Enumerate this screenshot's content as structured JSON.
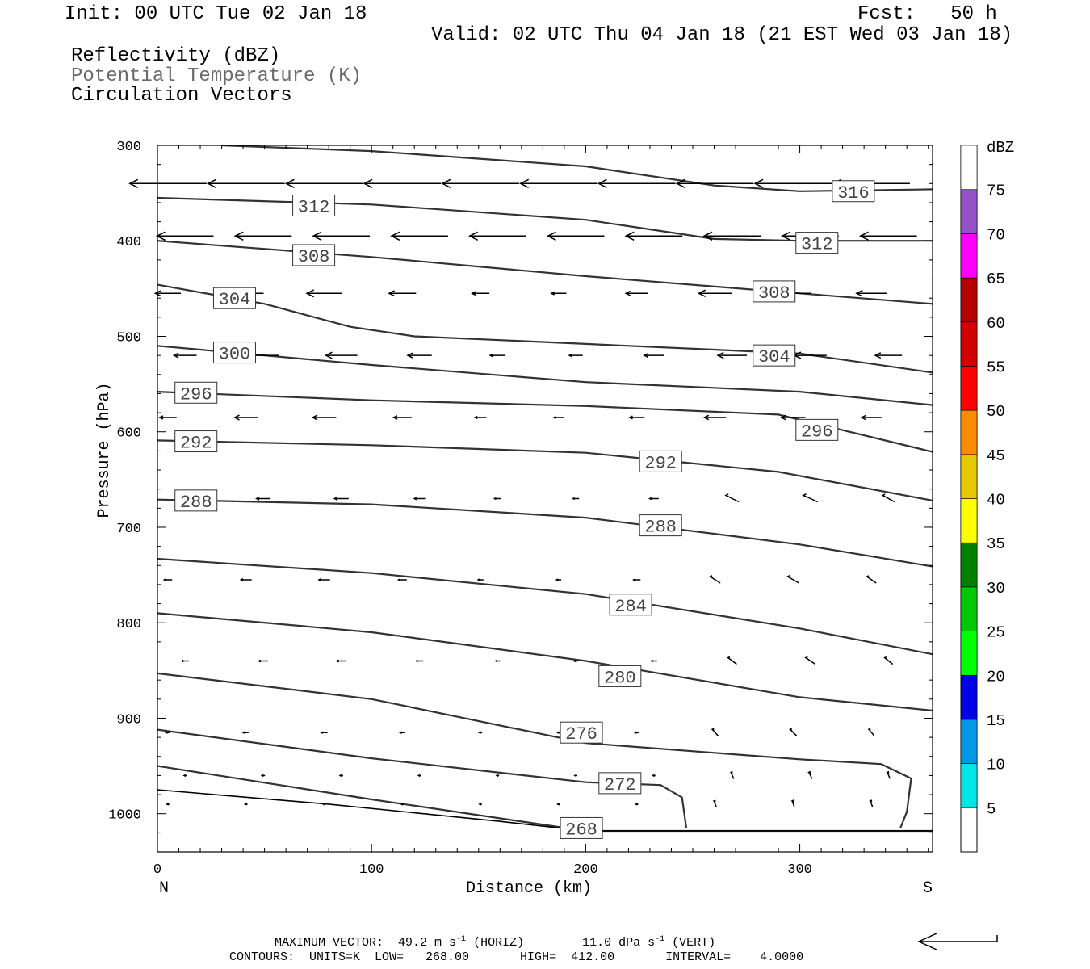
{
  "header": {
    "init": "Init: 00 UTC Tue 02 Jan 18",
    "fcst": "Fcst:   50 h",
    "valid": "Valid: 02 UTC Thu 04 Jan 18 (21 EST Wed 03 Jan 18)",
    "fields": [
      "Reflectivity (dBZ)",
      "Potential Temperature (K)",
      "Circulation Vectors"
    ]
  },
  "footer": {
    "line1": "MAXIMUM VECTOR:  49.2 m s",
    "line1_sup": "-1",
    "line1_mid": " (HORIZ)        11.0 dPa s",
    "line1_sup2": "-1",
    "line1_end": " (VERT)",
    "line2": "CONTOURS:  UNITS=K  LOW=   268.00       HIGH=  412.00       INTERVAL=    4.0000"
  },
  "chart_data": {
    "type": "line",
    "title": "",
    "xlabel": "Distance (km)",
    "ylabel": "Pressure (hPa)",
    "xlim": [
      0,
      362
    ],
    "ylim": [
      300,
      1040
    ],
    "y_inverted": true,
    "x_ticks": [
      0,
      100,
      200,
      300
    ],
    "y_ticks": [
      300,
      400,
      500,
      600,
      700,
      800,
      900,
      1000
    ],
    "x_end_labels": {
      "left": "N",
      "right": "S"
    },
    "colorbar": {
      "units": "dBZ",
      "labels": [
        "5",
        "10",
        "15",
        "20",
        "25",
        "30",
        "35",
        "40",
        "45",
        "50",
        "55",
        "60",
        "65",
        "70",
        "75"
      ],
      "colors": [
        "#00e6e6",
        "#0099e6",
        "#0000e6",
        "#00ff00",
        "#00c800",
        "#008200",
        "#ffff00",
        "#e6c800",
        "#ff8c00",
        "#ff0000",
        "#d20000",
        "#b40000",
        "#ff00ff",
        "#9650c8",
        "#ffffff"
      ]
    },
    "theta_contours": [
      {
        "label": "316",
        "points": [
          [
            30,
            300
          ],
          [
            100,
            306
          ],
          [
            200,
            322
          ],
          [
            260,
            342
          ],
          [
            300,
            348
          ],
          [
            362,
            346
          ]
        ],
        "label_at": [
          325,
          348
        ]
      },
      {
        "label": "312",
        "points": [
          [
            0,
            355
          ],
          [
            100,
            362
          ],
          [
            200,
            378
          ],
          [
            260,
            398
          ],
          [
            300,
            400
          ],
          [
            362,
            400
          ]
        ],
        "label_at": [
          73,
          363
        ],
        "label_at2": [
          308,
          402
        ]
      },
      {
        "label": "308",
        "points": [
          [
            0,
            400
          ],
          [
            100,
            417
          ],
          [
            200,
            437
          ],
          [
            300,
            455
          ],
          [
            362,
            466
          ]
        ],
        "label_at": [
          73,
          415
        ],
        "label_at2": [
          288,
          453
        ]
      },
      {
        "label": "304",
        "points": [
          [
            0,
            446
          ],
          [
            50,
            466
          ],
          [
            90,
            490
          ],
          [
            120,
            500
          ],
          [
            200,
            508
          ],
          [
            300,
            518
          ],
          [
            362,
            538
          ]
        ],
        "label_at": [
          36,
          460
        ],
        "label_at2": [
          288,
          520
        ]
      },
      {
        "label": "300",
        "points": [
          [
            0,
            510
          ],
          [
            100,
            530
          ],
          [
            200,
            548
          ],
          [
            300,
            558
          ],
          [
            362,
            572
          ]
        ],
        "label_at": [
          36,
          517
        ]
      },
      {
        "label": "296",
        "points": [
          [
            0,
            558
          ],
          [
            100,
            567
          ],
          [
            200,
            573
          ],
          [
            290,
            582
          ],
          [
            362,
            621
          ]
        ],
        "label_at": [
          18,
          559
        ],
        "label_at2": [
          308,
          598
        ]
      },
      {
        "label": "292",
        "points": [
          [
            0,
            609
          ],
          [
            100,
            614
          ],
          [
            200,
            622
          ],
          [
            290,
            642
          ],
          [
            362,
            672
          ]
        ],
        "label_at": [
          18,
          610
        ],
        "label_at2": [
          235,
          631
        ]
      },
      {
        "label": "288",
        "points": [
          [
            0,
            671
          ],
          [
            100,
            676
          ],
          [
            200,
            690
          ],
          [
            300,
            718
          ],
          [
            362,
            741
          ]
        ],
        "label_at": [
          18,
          672
        ],
        "label_at2": [
          235,
          698
        ]
      },
      {
        "label": "284",
        "points": [
          [
            0,
            733
          ],
          [
            100,
            748
          ],
          [
            200,
            770
          ],
          [
            300,
            806
          ],
          [
            362,
            833
          ]
        ],
        "label_at": [
          221,
          781
        ]
      },
      {
        "label": "280",
        "points": [
          [
            0,
            790
          ],
          [
            100,
            810
          ],
          [
            200,
            840
          ],
          [
            300,
            878
          ],
          [
            362,
            892
          ]
        ],
        "label_at": [
          216,
          856
        ]
      },
      {
        "label": "276",
        "points": [
          [
            0,
            853
          ],
          [
            100,
            880
          ],
          [
            200,
            926
          ],
          [
            300,
            943
          ],
          [
            338,
            948
          ],
          [
            352,
            963
          ],
          [
            350,
            998
          ],
          [
            347,
            1015
          ]
        ],
        "label_at": [
          198,
          915
        ]
      },
      {
        "label": "272",
        "points": [
          [
            0,
            912
          ],
          [
            100,
            942
          ],
          [
            200,
            967
          ],
          [
            235,
            970
          ],
          [
            245,
            983
          ],
          [
            247,
            1015
          ]
        ],
        "label_at": [
          216,
          968
        ]
      },
      {
        "label": "268",
        "points": [
          [
            0,
            950
          ],
          [
            100,
            985
          ],
          [
            200,
            1018
          ],
          [
            362,
            1018
          ]
        ],
        "label_at": [
          198,
          1015
        ]
      }
    ],
    "ground": [
      [
        0,
        975
      ],
      [
        80,
        990
      ],
      [
        160,
        1008
      ],
      [
        200,
        1018
      ],
      [
        362,
        1018
      ]
    ],
    "max_vector": {
      "horiz_m_s": 49.2,
      "vert_dPa_s": 11.0
    }
  }
}
